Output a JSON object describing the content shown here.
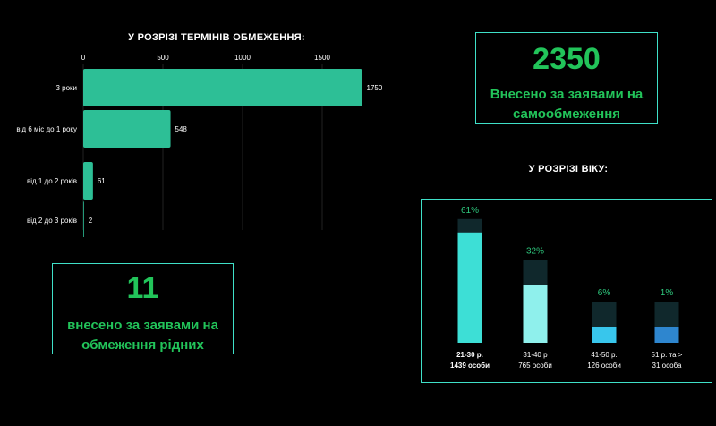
{
  "chart_data": [
    {
      "type": "bar",
      "orientation": "horizontal",
      "title": "У РОЗРІЗІ ТЕРМІНІВ ОБМЕЖЕННЯ:",
      "categories": [
        "3 роки",
        "від 6 міс до 1 року",
        "від 1 до 2 років",
        "від 2 до 3 років"
      ],
      "values": [
        1750,
        548,
        61,
        2
      ],
      "xticks": [
        0,
        500,
        1000,
        1500
      ],
      "xlim": [
        0,
        1800
      ],
      "color": "#2dbf96"
    },
    {
      "type": "bar",
      "orientation": "vertical",
      "title": "У РОЗРІЗІ ВІКУ:",
      "categories": [
        "21-30 р.",
        "31-40 р",
        "41-50 р.",
        "51 р. та >"
      ],
      "sublabels": [
        "1439 особи",
        "765 особи",
        "126 особи",
        "31 особа"
      ],
      "values": [
        61,
        32,
        6,
        1
      ],
      "value_labels": [
        "61%",
        "32%",
        "6%",
        "1%"
      ],
      "colors": [
        "#3ddfd6",
        "#8ff0ec",
        "#38c6ec",
        "#2e86cf"
      ]
    }
  ],
  "stats": {
    "self": {
      "value": "2350",
      "line1": "Внесено за заявами на",
      "line2": "самообмеження"
    },
    "relatives": {
      "value": "11",
      "line1": "внесено за заявами на",
      "line2": "обмеження рідних"
    }
  }
}
